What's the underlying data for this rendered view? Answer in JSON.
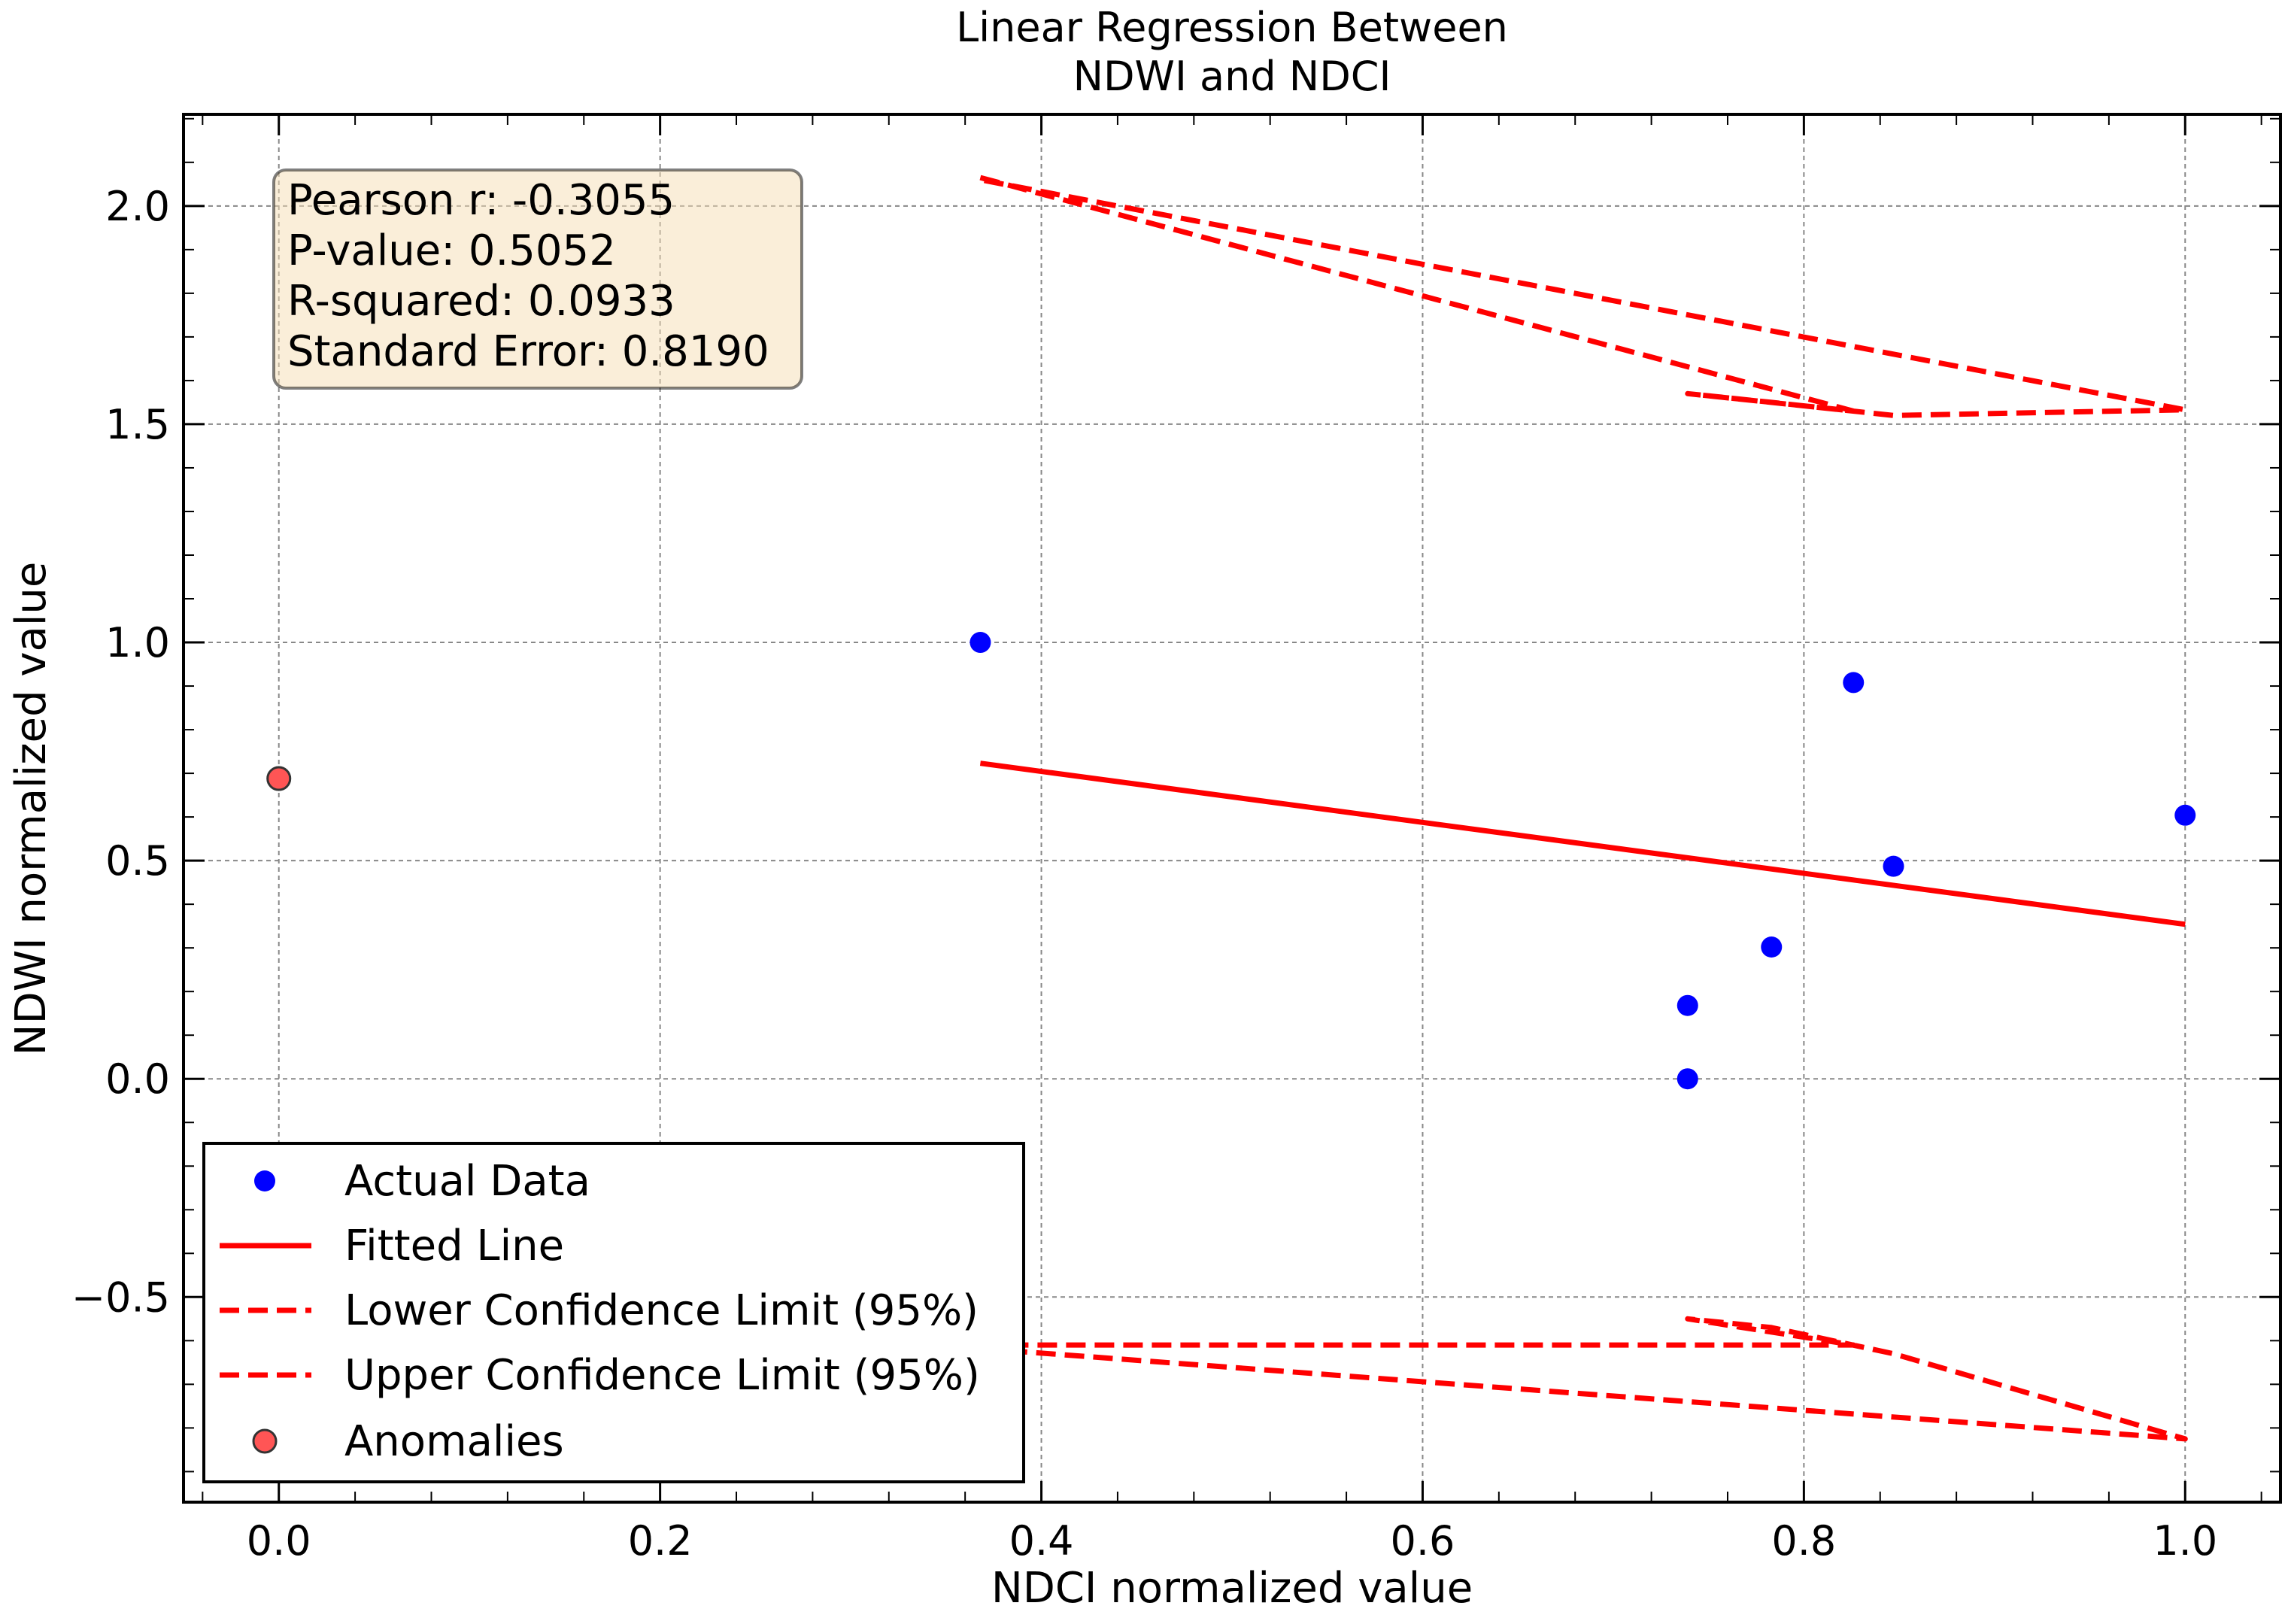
{
  "chart_data": {
    "type": "scatter",
    "title_lines": [
      "Linear Regression Between",
      "NDWI and NDCI"
    ],
    "xlabel": "NDCI normalized value",
    "ylabel": "NDWI normalized value",
    "xlim": [
      -0.05,
      1.05
    ],
    "ylim": [
      -0.97,
      2.21
    ],
    "xticks": [
      0.0,
      0.2,
      0.4,
      0.6,
      0.8,
      1.0
    ],
    "xtick_labels": [
      "0.0",
      "0.2",
      "0.4",
      "0.6",
      "0.8",
      "1.0"
    ],
    "yticks": [
      -0.5,
      0.0,
      0.5,
      1.0,
      1.5,
      2.0
    ],
    "ytick_labels": [
      "−0.5",
      "0.0",
      "0.5",
      "1.0",
      "1.5",
      "2.0"
    ],
    "grid": true,
    "legend_position": "lower-left",
    "stats_box": {
      "lines": [
        "Pearson r: -0.3055",
        "P-value: 0.5052",
        "R-squared: 0.0933",
        "Standard Error: 0.8190"
      ],
      "position": "top-left"
    },
    "series": [
      {
        "name": "Actual Data",
        "kind": "scatter",
        "color": "#0000ff",
        "points": [
          [
            0.368,
            1.0
          ],
          [
            0.826,
            0.908
          ],
          [
            1.0,
            0.604
          ],
          [
            0.847,
            0.487
          ],
          [
            0.783,
            0.302
          ],
          [
            0.739,
            0.168
          ],
          [
            0.739,
            0.0
          ]
        ]
      },
      {
        "name": "Fitted Line",
        "kind": "line",
        "style": "solid",
        "color": "#ff0000",
        "points": [
          [
            0.368,
            0.723
          ],
          [
            1.0,
            0.354
          ]
        ]
      },
      {
        "name": "Lower Confidence Limit (95%)",
        "kind": "line",
        "style": "dashed",
        "color": "#ff0000",
        "points": [
          [
            0.368,
            -0.61
          ],
          [
            0.826,
            -0.61
          ],
          [
            0.739,
            -0.55
          ],
          [
            0.783,
            -0.57
          ],
          [
            0.847,
            -0.63
          ],
          [
            1.0,
            -0.825
          ],
          [
            0.368,
            -0.618
          ]
        ]
      },
      {
        "name": "Upper Confidence Limit (95%)",
        "kind": "line",
        "style": "dashed",
        "color": "#ff0000",
        "points": [
          [
            0.368,
            2.065
          ],
          [
            0.826,
            1.53
          ],
          [
            0.739,
            1.57
          ],
          [
            0.783,
            1.55
          ],
          [
            0.847,
            1.52
          ],
          [
            1.0,
            1.533
          ],
          [
            0.368,
            2.06
          ]
        ]
      },
      {
        "name": "Anomalies",
        "kind": "scatter",
        "color": "#ff5555",
        "edge_color": "#333333",
        "points": [
          [
            0.0,
            0.688
          ]
        ]
      }
    ]
  }
}
